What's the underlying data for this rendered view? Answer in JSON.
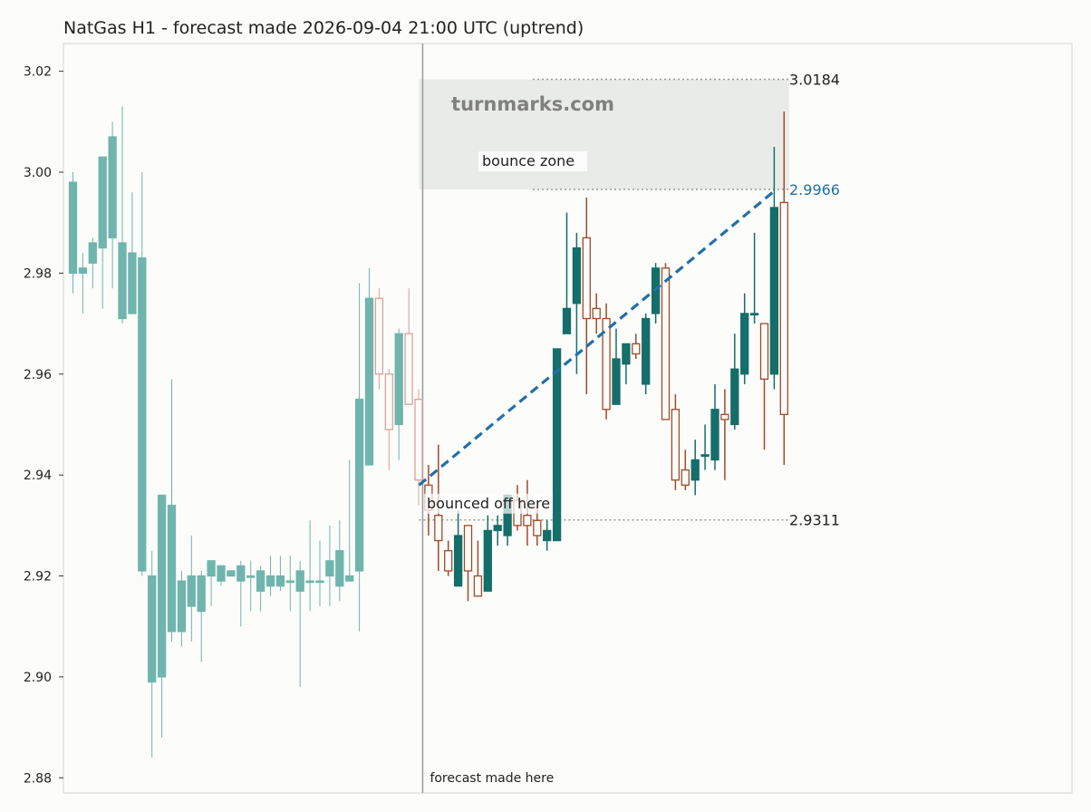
{
  "title": "NatGas H1 - forecast made 2026-09-04 21:00 UTC (uptrend)",
  "colors": {
    "up_hist": "#6fb5ad",
    "down_hist": "#d9a394",
    "up_fc": "#146e6a",
    "down_fc": "#a04a2a",
    "trend": "#2270a8",
    "zone": "#e9ebe8",
    "watermark": "#808080"
  },
  "chart_data": {
    "type": "candlestick",
    "ylim": [
      2.877,
      3.0255
    ],
    "yticks": [
      "2.88",
      "2.90",
      "2.92",
      "2.94",
      "2.96",
      "2.98",
      "3.00",
      "3.02"
    ],
    "grid": false,
    "history": [
      {
        "o": 2.98,
        "h": 3.0,
        "l": 2.976,
        "c": 2.998
      },
      {
        "o": 2.98,
        "h": 2.984,
        "l": 2.972,
        "c": 2.981
      },
      {
        "o": 2.982,
        "h": 2.987,
        "l": 2.977,
        "c": 2.986
      },
      {
        "o": 2.985,
        "h": 3.003,
        "l": 2.973,
        "c": 3.003
      },
      {
        "o": 2.987,
        "h": 3.01,
        "l": 2.977,
        "c": 3.007
      },
      {
        "o": 2.971,
        "h": 3.013,
        "l": 2.97,
        "c": 2.986
      },
      {
        "o": 2.972,
        "h": 2.996,
        "l": 2.972,
        "c": 2.984
      },
      {
        "o": 2.921,
        "h": 3.0,
        "l": 2.92,
        "c": 2.983
      },
      {
        "o": 2.899,
        "h": 2.925,
        "l": 2.884,
        "c": 2.92
      },
      {
        "o": 2.9,
        "h": 2.936,
        "l": 2.888,
        "c": 2.936
      },
      {
        "o": 2.909,
        "h": 2.959,
        "l": 2.907,
        "c": 2.934
      },
      {
        "o": 2.909,
        "h": 2.921,
        "l": 2.906,
        "c": 2.919
      },
      {
        "o": 2.914,
        "h": 2.928,
        "l": 2.907,
        "c": 2.92
      },
      {
        "o": 2.913,
        "h": 2.921,
        "l": 2.903,
        "c": 2.92
      },
      {
        "o": 2.92,
        "h": 2.923,
        "l": 2.914,
        "c": 2.923
      },
      {
        "o": 2.919,
        "h": 2.922,
        "l": 2.918,
        "c": 2.922
      },
      {
        "o": 2.92,
        "h": 2.921,
        "l": 2.92,
        "c": 2.921
      },
      {
        "o": 2.919,
        "h": 2.923,
        "l": 2.91,
        "c": 2.922
      },
      {
        "o": 2.92,
        "h": 2.923,
        "l": 2.913,
        "c": 2.92
      },
      {
        "o": 2.917,
        "h": 2.922,
        "l": 2.913,
        "c": 2.921
      },
      {
        "o": 2.918,
        "h": 2.924,
        "l": 2.916,
        "c": 2.92
      },
      {
        "o": 2.918,
        "h": 2.924,
        "l": 2.917,
        "c": 2.92
      },
      {
        "o": 2.919,
        "h": 2.924,
        "l": 2.913,
        "c": 2.919
      },
      {
        "o": 2.917,
        "h": 2.923,
        "l": 2.898,
        "c": 2.921
      },
      {
        "o": 2.919,
        "h": 2.931,
        "l": 2.913,
        "c": 2.919
      },
      {
        "o": 2.919,
        "h": 2.927,
        "l": 2.914,
        "c": 2.919
      },
      {
        "o": 2.92,
        "h": 2.93,
        "l": 2.914,
        "c": 2.923
      },
      {
        "o": 2.918,
        "h": 2.931,
        "l": 2.915,
        "c": 2.925
      },
      {
        "o": 2.919,
        "h": 2.943,
        "l": 2.919,
        "c": 2.92
      },
      {
        "o": 2.921,
        "h": 2.978,
        "l": 2.909,
        "c": 2.955
      },
      {
        "o": 2.942,
        "h": 2.981,
        "l": 2.942,
        "c": 2.975
      },
      {
        "o": 2.975,
        "h": 2.977,
        "l": 2.957,
        "c": 2.96
      },
      {
        "o": 2.96,
        "h": 2.961,
        "l": 2.941,
        "c": 2.949
      },
      {
        "o": 2.95,
        "h": 2.969,
        "l": 2.943,
        "c": 2.968
      },
      {
        "o": 2.968,
        "h": 2.977,
        "l": 2.954,
        "c": 2.954
      },
      {
        "o": 2.955,
        "h": 2.957,
        "l": 2.934,
        "c": 2.939
      }
    ],
    "forecast": [
      {
        "o": 2.938,
        "h": 2.942,
        "l": 2.928,
        "c": 2.933
      },
      {
        "o": 2.932,
        "h": 2.946,
        "l": 2.921,
        "c": 2.927
      },
      {
        "o": 2.925,
        "h": 2.927,
        "l": 2.92,
        "c": 2.921
      },
      {
        "o": 2.918,
        "h": 2.933,
        "l": 2.918,
        "c": 2.928
      },
      {
        "o": 2.93,
        "h": 2.93,
        "l": 2.915,
        "c": 2.921
      },
      {
        "o": 2.92,
        "h": 2.927,
        "l": 2.916,
        "c": 2.916
      },
      {
        "o": 2.917,
        "h": 2.932,
        "l": 2.917,
        "c": 2.929
      },
      {
        "o": 2.929,
        "h": 2.932,
        "l": 2.926,
        "c": 2.93
      },
      {
        "o": 2.928,
        "h": 2.936,
        "l": 2.926,
        "c": 2.936
      },
      {
        "o": 2.935,
        "h": 2.938,
        "l": 2.929,
        "c": 2.93
      },
      {
        "o": 2.932,
        "h": 2.939,
        "l": 2.926,
        "c": 2.93
      },
      {
        "o": 2.931,
        "h": 2.934,
        "l": 2.926,
        "c": 2.928
      },
      {
        "o": 2.927,
        "h": 2.931,
        "l": 2.925,
        "c": 2.929
      },
      {
        "o": 2.927,
        "h": 2.965,
        "l": 2.927,
        "c": 2.965
      },
      {
        "o": 2.968,
        "h": 2.992,
        "l": 2.968,
        "c": 2.973
      },
      {
        "o": 2.974,
        "h": 2.988,
        "l": 2.96,
        "c": 2.985
      },
      {
        "o": 2.987,
        "h": 2.995,
        "l": 2.956,
        "c": 2.971
      },
      {
        "o": 2.973,
        "h": 2.976,
        "l": 2.968,
        "c": 2.971
      },
      {
        "o": 2.971,
        "h": 2.974,
        "l": 2.951,
        "c": 2.953
      },
      {
        "o": 2.954,
        "h": 2.969,
        "l": 2.954,
        "c": 2.963
      },
      {
        "o": 2.962,
        "h": 2.966,
        "l": 2.958,
        "c": 2.966
      },
      {
        "o": 2.966,
        "h": 2.968,
        "l": 2.963,
        "c": 2.964
      },
      {
        "o": 2.958,
        "h": 2.972,
        "l": 2.956,
        "c": 2.971
      },
      {
        "o": 2.972,
        "h": 2.982,
        "l": 2.97,
        "c": 2.981
      },
      {
        "o": 2.981,
        "h": 2.982,
        "l": 2.951,
        "c": 2.951
      },
      {
        "o": 2.953,
        "h": 2.956,
        "l": 2.937,
        "c": 2.939
      },
      {
        "o": 2.941,
        "h": 2.945,
        "l": 2.937,
        "c": 2.938
      },
      {
        "o": 2.939,
        "h": 2.947,
        "l": 2.936,
        "c": 2.943
      },
      {
        "o": 2.944,
        "h": 2.95,
        "l": 2.941,
        "c": 2.944
      },
      {
        "o": 2.943,
        "h": 2.958,
        "l": 2.941,
        "c": 2.953
      },
      {
        "o": 2.952,
        "h": 2.957,
        "l": 2.939,
        "c": 2.951
      },
      {
        "o": 2.95,
        "h": 2.968,
        "l": 2.949,
        "c": 2.961
      },
      {
        "o": 2.96,
        "h": 2.976,
        "l": 2.958,
        "c": 2.972
      },
      {
        "o": 2.972,
        "h": 2.988,
        "l": 2.97,
        "c": 2.972
      },
      {
        "o": 2.97,
        "h": 2.97,
        "l": 2.945,
        "c": 2.959
      },
      {
        "o": 2.96,
        "h": 3.005,
        "l": 2.957,
        "c": 2.993
      },
      {
        "o": 2.994,
        "h": 3.012,
        "l": 2.942,
        "c": 2.952
      }
    ],
    "trend_line": {
      "from": 2.938,
      "to": 2.9966
    },
    "bounce_zone": {
      "low": 2.9966,
      "high": 3.0184,
      "label": "bounce zone"
    },
    "levels": [
      {
        "value": 3.0184,
        "label": "3.0184"
      },
      {
        "value": 2.9966,
        "label": "2.9966"
      },
      {
        "value": 2.9311,
        "label": "2.9311"
      }
    ],
    "annotations": {
      "forecast_marker": "forecast made here",
      "bounce_note": "bounced off here",
      "watermark": "turnmarks.com"
    }
  }
}
